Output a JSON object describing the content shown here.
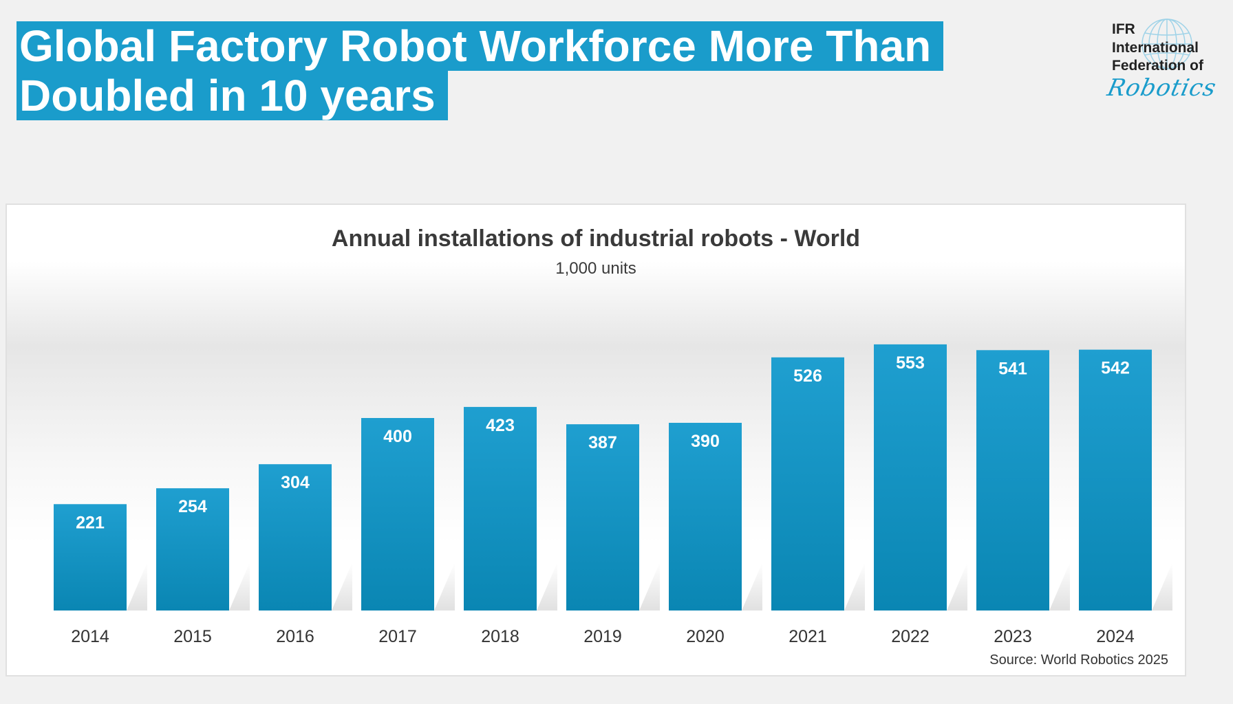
{
  "headline": {
    "line1": "Global Factory Robot Workforce More Than",
    "line2": "Doubled in 10 years"
  },
  "logo": {
    "line1": "IFR",
    "line2": "International",
    "line3": "Federation of",
    "line4": "Robotics",
    "icon": "globe-icon"
  },
  "colors": {
    "accent": "#1a9ccb",
    "bar_top": "#1f9fd0",
    "bar_bottom": "#0a86b3",
    "background": "#f1f1f1"
  },
  "source": "Source: World Robotics 2025",
  "chart_data": {
    "type": "bar",
    "title": "Annual installations of industrial robots - World",
    "subtitle": "1,000 units",
    "xlabel": "",
    "ylabel": "",
    "categories": [
      "2014",
      "2015",
      "2016",
      "2017",
      "2018",
      "2019",
      "2020",
      "2021",
      "2022",
      "2023",
      "2024"
    ],
    "values": [
      221,
      254,
      304,
      400,
      423,
      387,
      390,
      526,
      553,
      541,
      542
    ],
    "value_labels": [
      "221",
      "254",
      "304",
      "400",
      "423",
      "387",
      "390",
      "526",
      "553",
      "541",
      "542"
    ],
    "ylim": [
      0,
      600
    ],
    "grid": false,
    "legend": "none"
  }
}
